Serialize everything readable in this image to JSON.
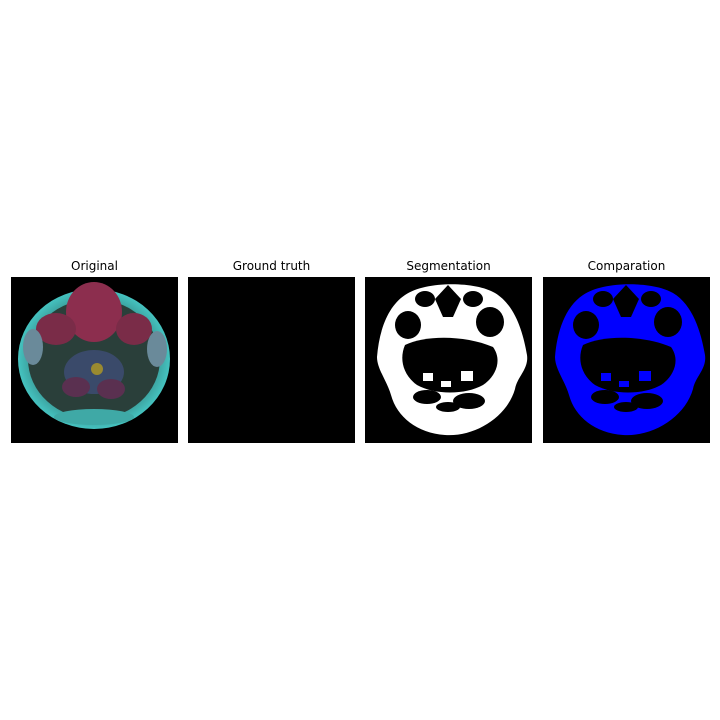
{
  "panels": [
    {
      "title": "Original"
    },
    {
      "title": "Ground truth"
    },
    {
      "title": "Segmentation"
    },
    {
      "title": "Comparation"
    }
  ],
  "colors": {
    "background": "#000000",
    "segmentation": "#ffffff",
    "comparison": "#0000ff"
  }
}
